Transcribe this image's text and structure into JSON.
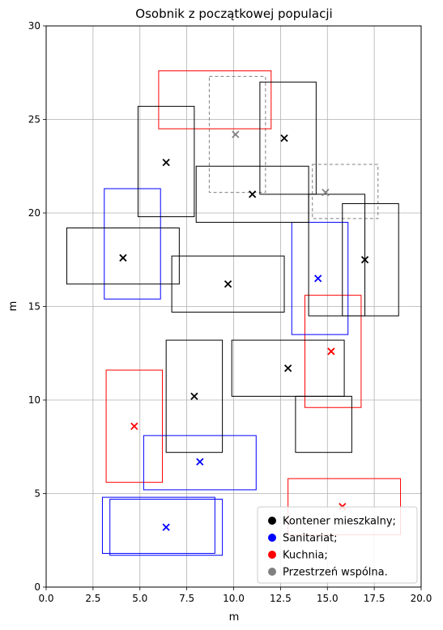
{
  "chart_data": {
    "type": "scatter",
    "title": "Osobnik z początkowej populacji",
    "xlabel": "m",
    "ylabel": "m",
    "xlim": [
      0,
      20
    ],
    "ylim": [
      0,
      30
    ],
    "xticks": [
      0.0,
      2.5,
      5.0,
      7.5,
      10.0,
      12.5,
      15.0,
      17.5,
      20.0
    ],
    "xtick_labels": [
      "0.0",
      "2.5",
      "5.0",
      "7.5",
      "10.0",
      "12.5",
      "15.0",
      "17.5",
      "20.0"
    ],
    "yticks": [
      0,
      5,
      10,
      15,
      20,
      25,
      30
    ],
    "ytick_labels": [
      "0",
      "5",
      "10",
      "15",
      "20",
      "25",
      "30"
    ],
    "grid": true,
    "legend_position": "bottom-right",
    "colors": {
      "mieszkalny": "#000000",
      "sanitariat": "#0000ff",
      "kuchnia": "#ff0000",
      "wspolna": "#808080"
    },
    "series": [
      {
        "key": "wspolna",
        "name": "Przestrzeń wspólna.",
        "style": "dashed",
        "rects": [
          {
            "x0": 8.7,
            "y0": 21.1,
            "x1": 11.7,
            "y1": 27.3,
            "cx": 10.1,
            "cy": 24.2
          },
          {
            "x0": 14.2,
            "y0": 19.7,
            "x1": 17.7,
            "y1": 22.6,
            "cx": 14.9,
            "cy": 21.1
          }
        ]
      },
      {
        "key": "kuchnia",
        "name": "Kuchnia;",
        "style": "solid",
        "rects": [
          {
            "x0": 6.0,
            "y0": 24.5,
            "x1": 12.0,
            "y1": 27.6,
            "cx": null,
            "cy": null
          },
          {
            "x0": 3.2,
            "y0": 5.6,
            "x1": 6.2,
            "y1": 11.6,
            "cx": 4.7,
            "cy": 8.6
          },
          {
            "x0": 13.8,
            "y0": 9.6,
            "x1": 16.8,
            "y1": 15.6,
            "cx": 15.2,
            "cy": 12.6
          },
          {
            "x0": 12.9,
            "y0": 2.8,
            "x1": 18.9,
            "y1": 5.8,
            "cx": 15.8,
            "cy": 4.3
          }
        ]
      },
      {
        "key": "sanitariat",
        "name": "Sanitariat;",
        "style": "solid",
        "rects": [
          {
            "x0": 3.1,
            "y0": 15.4,
            "x1": 6.1,
            "y1": 21.3,
            "cx": null,
            "cy": null
          },
          {
            "x0": 13.1,
            "y0": 13.5,
            "x1": 16.1,
            "y1": 19.5,
            "cx": 14.5,
            "cy": 16.5
          },
          {
            "x0": 5.2,
            "y0": 5.2,
            "x1": 11.2,
            "y1": 8.1,
            "cx": 8.2,
            "cy": 6.7
          },
          {
            "x0": 3.0,
            "y0": 1.8,
            "x1": 9.0,
            "y1": 4.8,
            "cx": null,
            "cy": null
          },
          {
            "x0": 3.4,
            "y0": 1.7,
            "x1": 9.4,
            "y1": 4.7,
            "cx": 6.4,
            "cy": 3.2
          }
        ]
      },
      {
        "key": "mieszkalny",
        "name": "Kontener mieszkalny;",
        "style": "solid",
        "rects": [
          {
            "x0": 11.4,
            "y0": 21.0,
            "x1": 14.4,
            "y1": 27.0,
            "cx": 12.7,
            "cy": 24.0
          },
          {
            "x0": 4.9,
            "y0": 19.8,
            "x1": 7.9,
            "y1": 25.7,
            "cx": 6.4,
            "cy": 22.7
          },
          {
            "x0": 8.0,
            "y0": 19.5,
            "x1": 14.0,
            "y1": 22.5,
            "cx": 11.0,
            "cy": 21.0
          },
          {
            "x0": 14.0,
            "y0": 14.5,
            "x1": 17.0,
            "y1": 21.0,
            "cx": null,
            "cy": null
          },
          {
            "x0": 15.8,
            "y0": 14.5,
            "x1": 18.8,
            "y1": 20.5,
            "cx": 17.0,
            "cy": 17.5
          },
          {
            "x0": 1.1,
            "y0": 16.2,
            "x1": 7.1,
            "y1": 19.2,
            "cx": 4.1,
            "cy": 17.6
          },
          {
            "x0": 6.7,
            "y0": 14.7,
            "x1": 12.7,
            "y1": 17.7,
            "cx": 9.7,
            "cy": 16.2
          },
          {
            "x0": 6.4,
            "y0": 7.2,
            "x1": 9.4,
            "y1": 13.2,
            "cx": 7.9,
            "cy": 10.2
          },
          {
            "x0": 9.9,
            "y0": 10.2,
            "x1": 15.9,
            "y1": 13.2,
            "cx": 12.9,
            "cy": 11.7
          },
          {
            "x0": 13.3,
            "y0": 7.2,
            "x1": 16.3,
            "y1": 10.2,
            "cx": null,
            "cy": null
          }
        ]
      }
    ],
    "legend": [
      {
        "key": "mieszkalny",
        "label": "Kontener mieszkalny;"
      },
      {
        "key": "sanitariat",
        "label": "Sanitariat;"
      },
      {
        "key": "kuchnia",
        "label": "Kuchnia;"
      },
      {
        "key": "wspolna",
        "label": "Przestrzeń wspólna."
      }
    ]
  }
}
